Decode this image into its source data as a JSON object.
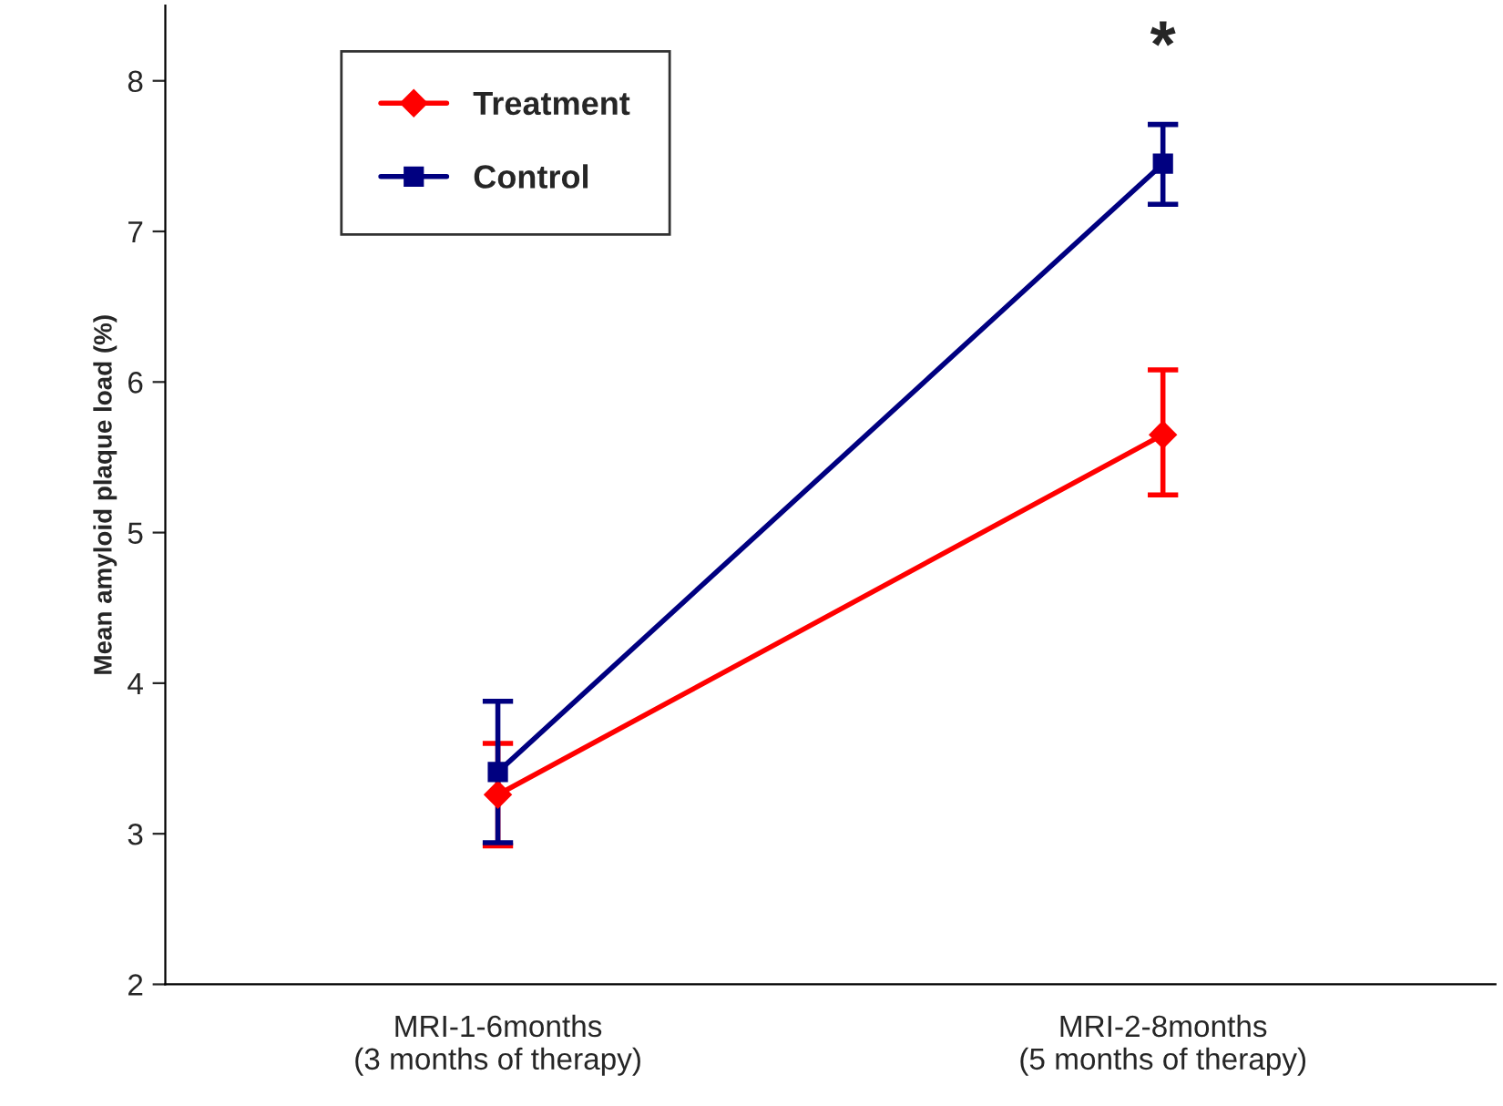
{
  "chart_data": {
    "type": "line",
    "ylabel": "Mean amyloid plaque load (%)",
    "categories": [
      "MRI-1-6months\n(3 months of therapy)",
      "MRI-2-8months\n(5 months of therapy)"
    ],
    "series": [
      {
        "name": "Treatment",
        "color": "#ff0000",
        "marker": "diamond",
        "values": [
          3.26,
          5.65
        ],
        "errors": [
          [
            2.92,
            3.6
          ],
          [
            5.25,
            6.08
          ]
        ]
      },
      {
        "name": "Control",
        "color": "#000080",
        "marker": "square",
        "values": [
          3.41,
          7.45
        ],
        "errors": [
          [
            2.94,
            3.88
          ],
          [
            7.18,
            7.71
          ]
        ]
      }
    ],
    "ylim": [
      2,
      8.5
    ],
    "yticks": [
      2,
      3,
      4,
      5,
      6,
      7,
      8
    ],
    "grid": false,
    "legend": "top left",
    "annotations": [
      {
        "text": "*",
        "x": "MRI-2-8months\n(5 months of therapy)",
        "y": 7.45
      }
    ]
  }
}
